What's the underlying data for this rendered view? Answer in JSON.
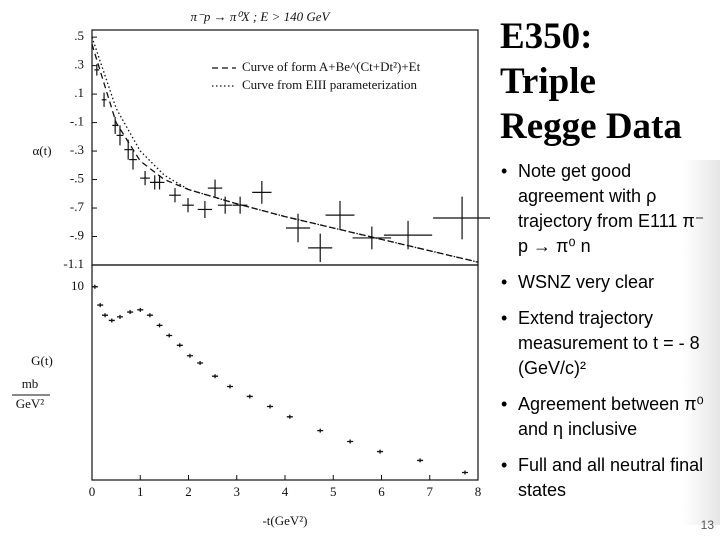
{
  "slide": {
    "title": [
      "E350:",
      "Triple",
      "Regge Data"
    ],
    "bullets": [
      "Note get good agreement with ρ trajectory from E111 π⁻ p → π⁰ n",
      "WSNZ very clear",
      "Extend trajectory measurement to t = - 8 (GeV/c)²",
      "Agreement between π⁰ and η inclusive",
      "Full and all neutral final states"
    ],
    "page_number": "13"
  },
  "chart_data": [
    {
      "type": "errorbar",
      "title": "π⁻p → π⁰X ; E > 140 GeV",
      "y_label": "α(t)",
      "xlim": [
        0,
        8
      ],
      "ylim": [
        -1.1,
        0.55
      ],
      "yticks": [
        {
          "value": 0.5,
          "label": ".5"
        },
        {
          "value": 0.3,
          "label": ".3"
        },
        {
          "value": 0.1,
          "label": ".1"
        },
        {
          "value": -0.1,
          "label": "-.1"
        },
        {
          "value": -0.3,
          "label": "-.3"
        },
        {
          "value": -0.5,
          "label": "-.5"
        },
        {
          "value": -0.7,
          "label": "-.7"
        },
        {
          "value": -0.9,
          "label": "-.9"
        },
        -1.1
      ],
      "color": "#111111",
      "points": {
        "x": [
          0.1,
          0.25,
          0.48,
          0.58,
          0.75,
          0.85,
          1.1,
          1.3,
          1.4,
          1.72,
          1.99,
          2.34,
          2.55,
          2.76,
          3.07,
          3.52,
          4.27,
          4.73,
          5.14,
          5.8,
          6.55,
          7.67
        ],
        "y": [
          0.27,
          0.06,
          -0.12,
          -0.19,
          -0.29,
          -0.36,
          -0.49,
          -0.52,
          -0.52,
          -0.61,
          -0.68,
          -0.71,
          -0.56,
          -0.68,
          -0.68,
          -0.59,
          -0.84,
          -0.98,
          -0.75,
          -0.91,
          -0.89,
          -0.77
        ],
        "xerr": [
          0.05,
          0.05,
          0.06,
          0.07,
          0.08,
          0.08,
          0.1,
          0.1,
          0.1,
          0.12,
          0.12,
          0.15,
          0.15,
          0.15,
          0.15,
          0.2,
          0.25,
          0.25,
          0.3,
          0.4,
          0.5,
          0.6
        ],
        "yerr": [
          0.04,
          0.05,
          0.06,
          0.07,
          0.07,
          0.07,
          0.05,
          0.05,
          0.05,
          0.05,
          0.05,
          0.06,
          0.06,
          0.06,
          0.06,
          0.08,
          0.1,
          0.1,
          0.1,
          0.08,
          0.1,
          0.15
        ]
      },
      "series": [
        {
          "name": "Curve of form A+Be^(Ct+Dt²)+Et",
          "style": "dashed",
          "x": [
            0,
            0.5,
            1,
            1.5,
            2,
            3,
            4,
            5,
            6,
            7,
            8
          ],
          "values": [
            0.45,
            -0.1,
            -0.37,
            -0.5,
            -0.57,
            -0.67,
            -0.76,
            -0.84,
            -0.92,
            -1.0,
            -1.08
          ]
        },
        {
          "name": "Curve from EIII parameterization",
          "style": "dotted",
          "x": [
            0,
            0.5,
            1,
            1.5,
            2,
            3,
            4,
            5,
            6,
            7,
            8
          ],
          "values": [
            0.5,
            0.0,
            -0.3,
            -0.47,
            -0.57,
            -0.67,
            -0.76,
            -0.84,
            -0.92,
            -1.0,
            -1.08
          ]
        }
      ]
    },
    {
      "type": "scatter",
      "y_label": "G(t)",
      "y_unit_top": "mb",
      "y_unit_bottom": "GeV²",
      "x_label": "-t(GeV²)",
      "log_y": true,
      "xlim": [
        0,
        8
      ],
      "ylim": [
        0.09,
        17
      ],
      "yticks": [
        10
      ],
      "xticks": [
        0,
        1,
        2,
        3,
        4,
        5,
        6,
        7,
        8
      ],
      "color": "#111111",
      "x": [
        0.06,
        0.17,
        0.27,
        0.41,
        0.58,
        0.79,
        1.0,
        1.2,
        1.4,
        1.6,
        1.82,
        2.03,
        2.24,
        2.55,
        2.86,
        3.27,
        3.69,
        4.1,
        4.73,
        5.35,
        5.97,
        6.8,
        7.73
      ],
      "values": [
        10,
        6.4,
        5.0,
        4.4,
        4.8,
        5.4,
        5.7,
        5.0,
        3.9,
        3.05,
        2.4,
        1.86,
        1.56,
        1.13,
        0.88,
        0.69,
        0.54,
        0.42,
        0.3,
        0.23,
        0.18,
        0.145,
        0.108
      ]
    }
  ]
}
